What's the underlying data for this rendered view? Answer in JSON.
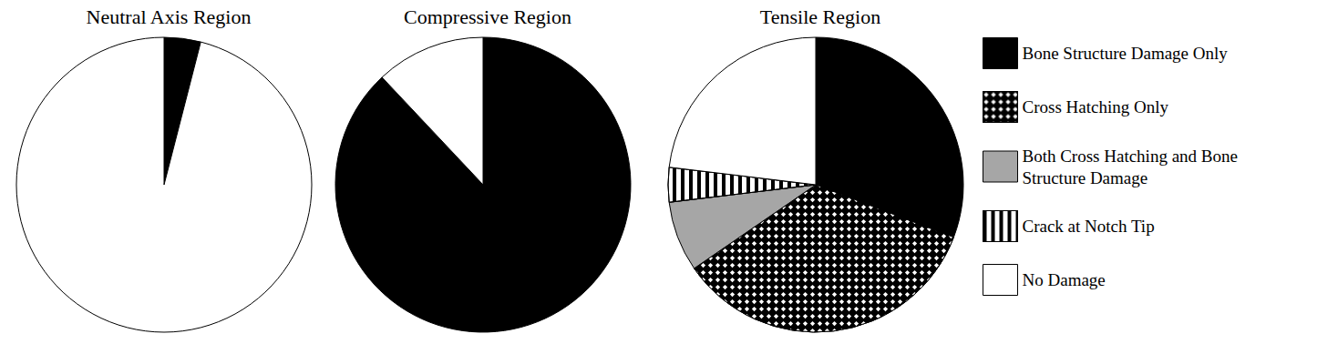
{
  "chart_data": [
    {
      "type": "pie",
      "title": "Neutral Axis Region",
      "categories": [
        "Bone Structure Damage Only",
        "No Damage"
      ],
      "values": [
        4,
        96
      ],
      "colors": [
        "#000000",
        "#ffffff"
      ]
    },
    {
      "type": "pie",
      "title": "Compressive Region",
      "categories": [
        "Bone Structure Damage Only",
        "No Damage"
      ],
      "values": [
        88,
        12
      ],
      "colors": [
        "#000000",
        "#ffffff"
      ]
    },
    {
      "type": "pie",
      "title": "Tensile Region",
      "categories": [
        "Bone Structure Damage Only",
        "Cross Hatching Only",
        "Both Cross Hatching and Bone Structure Damage",
        "Crack at Notch Tip",
        "No Damage"
      ],
      "values": [
        30.8,
        34.6,
        7.7,
        3.8,
        23.1
      ],
      "colors": [
        "#000000",
        "#000000",
        "#a6a6a6",
        "#ffffff",
        "#ffffff"
      ],
      "legend": "right"
    }
  ]
}
